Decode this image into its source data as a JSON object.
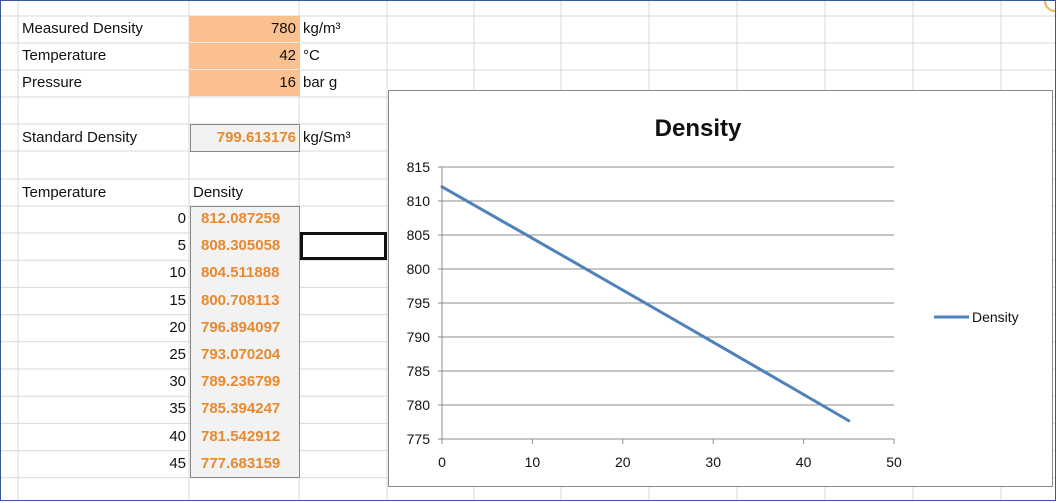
{
  "sheet": {
    "measured_density": {
      "label": "Measured Density",
      "value": "780",
      "unit": "kg/m³"
    },
    "temperature": {
      "label": "Temperature",
      "value": "42",
      "unit": "°C"
    },
    "pressure": {
      "label": "Pressure",
      "value": "16",
      "unit": "bar g"
    },
    "standard_density": {
      "label": "Standard Density",
      "value": "799.613176",
      "unit": "kg/Sm³"
    },
    "table": {
      "header_temperature": "Temperature",
      "header_density": "Density",
      "rows": [
        {
          "t": "0",
          "d": "812.087259"
        },
        {
          "t": "5",
          "d": "808.305058"
        },
        {
          "t": "10",
          "d": "804.511888"
        },
        {
          "t": "15",
          "d": "800.708113"
        },
        {
          "t": "20",
          "d": "796.894097"
        },
        {
          "t": "25",
          "d": "793.070204"
        },
        {
          "t": "30",
          "d": "789.236799"
        },
        {
          "t": "35",
          "d": "785.394247"
        },
        {
          "t": "40",
          "d": "781.542912"
        },
        {
          "t": "45",
          "d": "777.683159"
        }
      ]
    }
  },
  "colors": {
    "input_fill": "#fac090",
    "output_text": "#e8892e",
    "series_line": "#4f81bd",
    "grid_line": "#d9d9d9"
  },
  "chart_data": {
    "type": "line",
    "title": "Density",
    "x": [
      0,
      5,
      10,
      15,
      20,
      25,
      30,
      35,
      40,
      45
    ],
    "series": [
      {
        "name": "Density",
        "values": [
          812.087259,
          808.305058,
          804.511888,
          800.708113,
          796.894097,
          793.070204,
          789.236799,
          785.394247,
          781.542912,
          777.683159
        ]
      }
    ],
    "xlim": [
      0,
      50
    ],
    "ylim": [
      775,
      815
    ],
    "x_ticks": [
      0,
      10,
      20,
      30,
      40,
      50
    ],
    "y_ticks": [
      775,
      780,
      785,
      790,
      795,
      800,
      805,
      810,
      815
    ],
    "legend": "right",
    "grid": true
  }
}
